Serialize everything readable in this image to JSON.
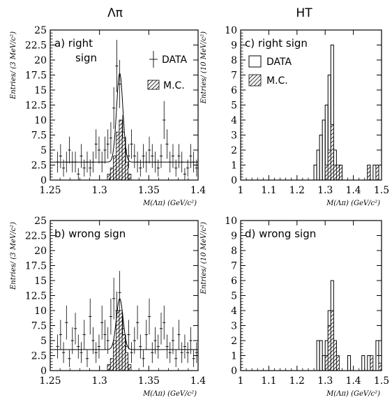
{
  "column_titles": [
    "Λπ",
    "HT"
  ],
  "chart_data": [
    {
      "id": "a",
      "type": "bar",
      "panel_label": "a)",
      "panel_text": [
        "right",
        "sign"
      ],
      "xlabel": "M(Λπ) (GeV/c²)",
      "ylabel": "Entries/ (3 MeV/c²)",
      "xlim": [
        1.25,
        1.4
      ],
      "ylim": [
        0,
        25
      ],
      "xticks": [
        "1.25",
        "1.3",
        "1.35",
        "1.4"
      ],
      "yticks": [
        "0",
        "2.5",
        "5",
        "7.5",
        "10",
        "12.5",
        "15",
        "17.5",
        "20",
        "22.5",
        "25"
      ],
      "legend": {
        "data_label": "DATA",
        "mc_label": "M.C.",
        "placement": "top-right"
      },
      "series": [
        {
          "kind": "data_points",
          "x": [
            1.2575,
            1.2605,
            1.2635,
            1.2665,
            1.2695,
            1.2725,
            1.2755,
            1.2785,
            1.2815,
            1.2845,
            1.2875,
            1.2905,
            1.2935,
            1.2965,
            1.2995,
            1.3025,
            1.3055,
            1.3085,
            1.3115,
            1.3145,
            1.3175,
            1.3205,
            1.3235,
            1.3265,
            1.3295,
            1.3325,
            1.3355,
            1.3385,
            1.3415,
            1.3445,
            1.3475,
            1.3505,
            1.3535,
            1.3565,
            1.3595,
            1.3625,
            1.3655,
            1.3685,
            1.3715,
            1.3745,
            1.3775,
            1.3805,
            1.3835,
            1.3865,
            1.3895,
            1.3925,
            1.3955,
            1.3985
          ],
          "y": [
            3,
            4,
            2,
            3,
            5,
            3,
            3,
            1,
            4,
            2,
            3,
            2,
            3,
            6,
            5,
            3,
            5,
            6,
            7,
            12,
            19,
            16,
            8,
            5,
            4,
            6,
            4,
            3,
            2,
            4,
            3,
            5,
            4,
            3,
            2,
            4,
            10,
            6,
            3,
            4,
            2,
            4,
            3,
            1,
            2,
            4,
            3,
            2
          ]
        },
        {
          "kind": "mc_histogram",
          "bins_x": [
            1.308,
            1.311,
            1.314,
            1.317,
            1.32,
            1.323,
            1.326,
            1.329
          ],
          "values": [
            1,
            2,
            4,
            8,
            10,
            7,
            3,
            1
          ]
        },
        {
          "kind": "fit_curve",
          "baseline": 3,
          "peak": 17.8,
          "mean": 1.3205,
          "sigma": 0.0032
        }
      ]
    },
    {
      "id": "b",
      "type": "bar",
      "panel_label": "b)",
      "panel_text": [
        "wrong sign"
      ],
      "xlabel": "M(Λπ) (GeV/c²)",
      "ylabel": "Entries/ (3 MeV/c²)",
      "xlim": [
        1.25,
        1.4
      ],
      "ylim": [
        0,
        25
      ],
      "xticks": [
        "1.25",
        "1.3",
        "1.35",
        "1.4"
      ],
      "yticks": [
        "0",
        "2.5",
        "5",
        "7.5",
        "10",
        "12.5",
        "15",
        "17.5",
        "20",
        "22.5",
        "25"
      ],
      "series": [
        {
          "kind": "data_points",
          "x": [
            1.2575,
            1.2605,
            1.2635,
            1.2665,
            1.2695,
            1.2725,
            1.2755,
            1.2785,
            1.2815,
            1.2845,
            1.2875,
            1.2905,
            1.2935,
            1.2965,
            1.2995,
            1.3025,
            1.3055,
            1.3085,
            1.3115,
            1.3145,
            1.3175,
            1.3205,
            1.3235,
            1.3265,
            1.3295,
            1.3325,
            1.3355,
            1.3385,
            1.3415,
            1.3445,
            1.3475,
            1.3505,
            1.3535,
            1.3565,
            1.3595,
            1.3625,
            1.3655,
            1.3685,
            1.3715,
            1.3745,
            1.3775,
            1.3805,
            1.3835,
            1.3865,
            1.3895,
            1.3925,
            1.3955,
            1.3985
          ],
          "y": [
            4,
            6,
            3,
            8,
            2,
            5,
            7,
            4,
            3,
            6,
            2,
            9,
            5,
            3,
            4,
            8,
            6,
            5,
            9,
            12,
            10,
            13,
            7,
            4,
            6,
            3,
            5,
            8,
            4,
            2,
            6,
            9,
            3,
            5,
            4,
            7,
            8,
            4,
            3,
            5,
            2,
            6,
            3,
            4,
            3,
            5,
            2,
            3
          ]
        },
        {
          "kind": "mc_histogram",
          "bins_x": [
            1.308,
            1.311,
            1.314,
            1.317,
            1.32,
            1.323,
            1.326,
            1.329
          ],
          "values": [
            1,
            2,
            5,
            10,
            10,
            6,
            3,
            1
          ]
        },
        {
          "kind": "fit_curve",
          "baseline": 3.5,
          "peak": 12,
          "mean": 1.3205,
          "sigma": 0.0034
        }
      ]
    },
    {
      "id": "c",
      "type": "bar",
      "panel_label": "c)",
      "panel_text": [
        "right sign"
      ],
      "xlabel": "M(Λπ) (GeV/c²)",
      "ylabel": "Entries/ (10 MeV/c²)",
      "xlim": [
        1.0,
        1.5
      ],
      "ylim": [
        0,
        10
      ],
      "xticks": [
        "1",
        "1.1",
        "1.2",
        "1.3",
        "1.4",
        "1.5"
      ],
      "yticks": [
        "0",
        "1",
        "2",
        "3",
        "4",
        "5",
        "6",
        "7",
        "8",
        "9",
        "10"
      ],
      "legend": {
        "data_label": "DATA",
        "mc_label": "M.C.",
        "placement": "top-left"
      },
      "series": [
        {
          "kind": "data_histogram",
          "bin_width": 0.01,
          "bins_x": [
            1.26,
            1.27,
            1.28,
            1.29,
            1.3,
            1.31,
            1.32,
            1.33,
            1.34,
            1.35,
            1.36,
            1.37,
            1.38,
            1.39,
            1.4,
            1.41,
            1.42,
            1.43,
            1.44,
            1.45,
            1.46,
            1.47,
            1.48,
            1.49
          ],
          "values": [
            1,
            2,
            3,
            4,
            5,
            7,
            9,
            2,
            0,
            1,
            0,
            0,
            0,
            0,
            0,
            0,
            0,
            0,
            0,
            1,
            0,
            1,
            0,
            1
          ]
        },
        {
          "kind": "mc_histogram",
          "bin_width": 0.01,
          "bins_x": [
            1.29,
            1.3,
            1.31,
            1.32,
            1.33,
            1.34,
            1.35,
            1.36,
            1.37,
            1.38,
            1.39,
            1.4,
            1.41,
            1.42,
            1.43,
            1.44,
            1.45,
            1.46,
            1.47,
            1.48,
            1.49
          ],
          "values": [
            0,
            1,
            2,
            3.7,
            1,
            1,
            1,
            0,
            0,
            0,
            0,
            0,
            0,
            0,
            0,
            0,
            1,
            0,
            0,
            1,
            0
          ]
        }
      ]
    },
    {
      "id": "d",
      "type": "bar",
      "panel_label": "d)",
      "panel_text": [
        "wrong sign"
      ],
      "xlabel": "M(Λπ) (GeV/c²)",
      "ylabel": "Entries/ (10 MeV/c²)",
      "xlim": [
        1.0,
        1.5
      ],
      "ylim": [
        0,
        10
      ],
      "xticks": [
        "1",
        "1.1",
        "1.2",
        "1.3",
        "1.4",
        "1.5"
      ],
      "yticks": [
        "0",
        "1",
        "2",
        "3",
        "4",
        "5",
        "6",
        "7",
        "8",
        "9",
        "10"
      ],
      "series": [
        {
          "kind": "data_histogram",
          "bin_width": 0.01,
          "bins_x": [
            1.27,
            1.28,
            1.29,
            1.3,
            1.31,
            1.32,
            1.33,
            1.34,
            1.35,
            1.36,
            1.37,
            1.38,
            1.39,
            1.4,
            1.41,
            1.42,
            1.43,
            1.44,
            1.45,
            1.46,
            1.47,
            1.48,
            1.49
          ],
          "values": [
            2,
            2,
            1,
            2,
            4,
            6,
            2,
            0,
            0,
            0,
            0,
            1,
            0,
            0,
            0,
            0,
            1,
            0,
            1,
            0,
            0,
            2,
            0
          ]
        },
        {
          "kind": "mc_histogram",
          "bin_width": 0.01,
          "bins_x": [
            1.29,
            1.3,
            1.31,
            1.32,
            1.33,
            1.34,
            1.35,
            1.36,
            1.37,
            1.38,
            1.39,
            1.4,
            1.41,
            1.42,
            1.43,
            1.44,
            1.45,
            1.46,
            1.47,
            1.48,
            1.49
          ],
          "values": [
            0,
            1,
            3,
            4,
            2,
            1,
            0,
            0,
            0,
            0,
            0,
            0,
            0,
            0,
            0,
            0,
            0,
            1,
            0,
            0,
            0.5
          ]
        }
      ]
    }
  ]
}
